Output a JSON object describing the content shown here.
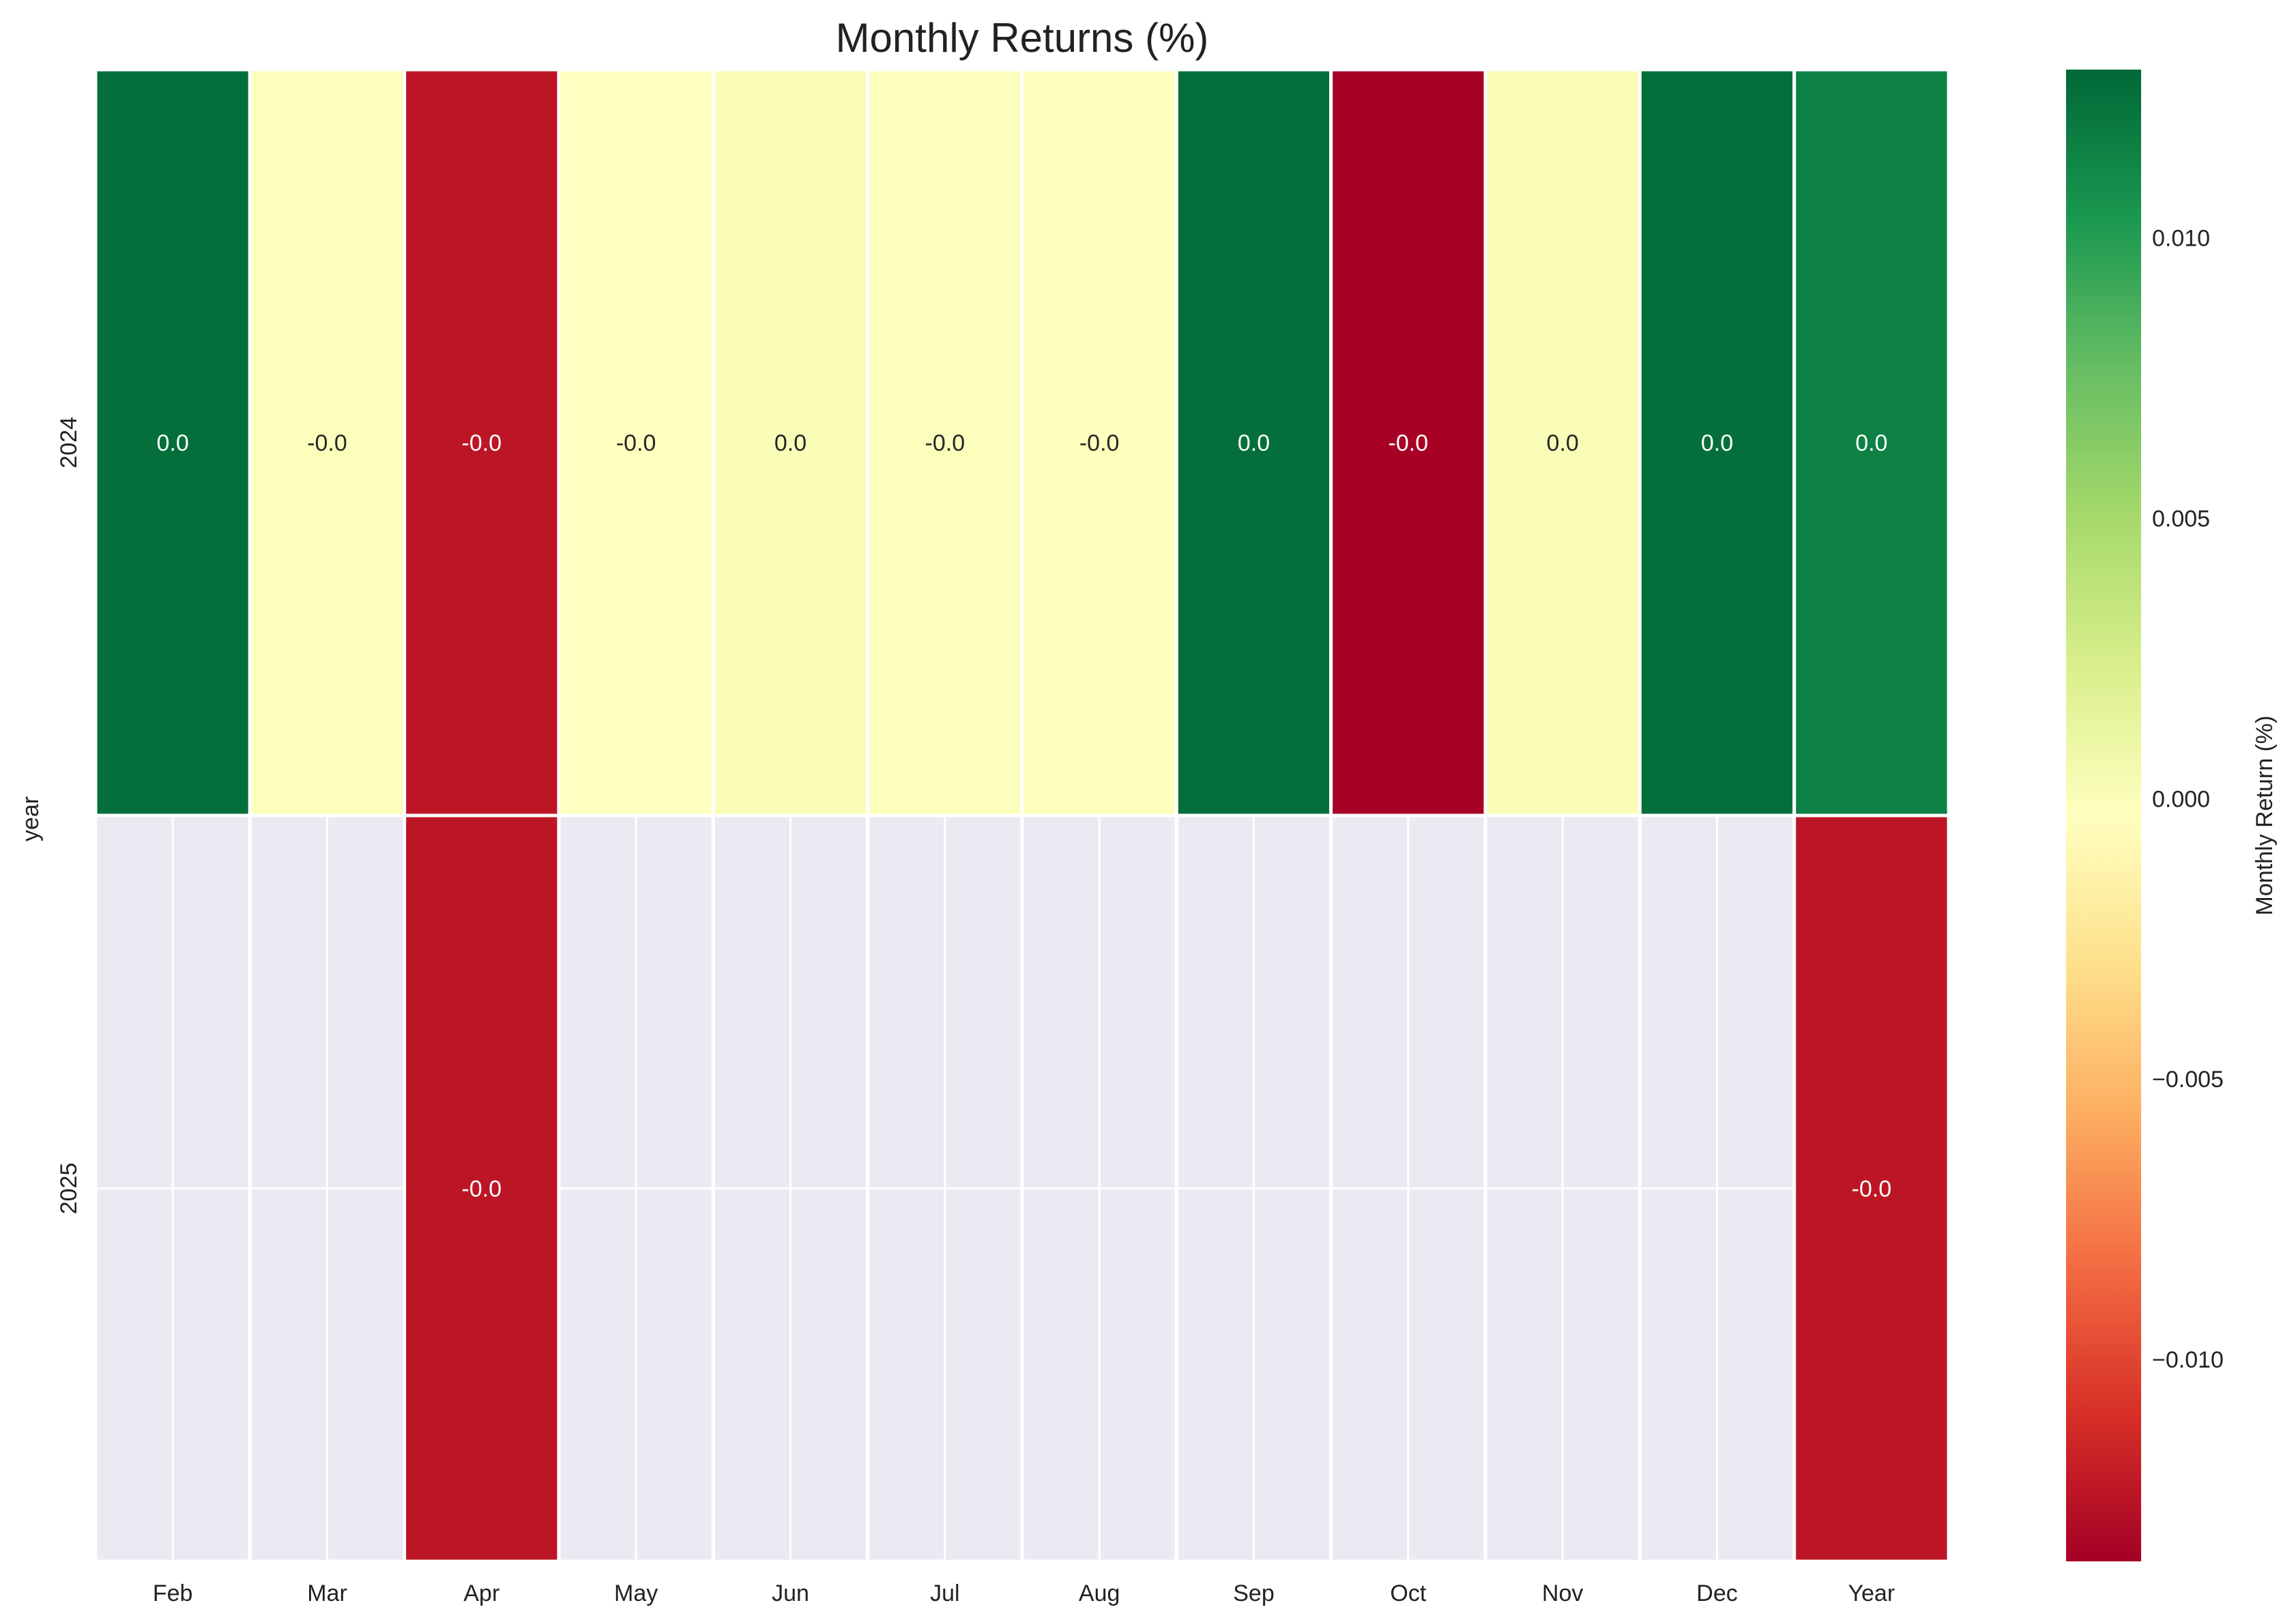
{
  "chart_data": {
    "type": "heatmap",
    "title": "Monthly Returns (%)",
    "ylabel": "year",
    "xlabel": "",
    "columns": [
      "Feb",
      "Mar",
      "Apr",
      "May",
      "Jun",
      "Jul",
      "Aug",
      "Sep",
      "Oct",
      "Nov",
      "Dec",
      "Year"
    ],
    "rows": [
      "2024",
      "2025"
    ],
    "values": [
      [
        0.0126,
        -0.0001,
        -0.0124,
        -0.0003,
        0.0001,
        -0.0001,
        -0.0002,
        0.0126,
        -0.0135,
        0.0001,
        0.0126,
        0.0116
      ],
      [
        null,
        null,
        -0.0124,
        null,
        null,
        null,
        null,
        null,
        null,
        null,
        null,
        -0.0124
      ]
    ],
    "annotations": [
      [
        "0.0",
        "-0.0",
        "-0.0",
        "-0.0",
        "0.0",
        "-0.0",
        "-0.0",
        "0.0",
        "-0.0",
        "0.0",
        "0.0",
        "0.0"
      ],
      [
        null,
        null,
        "-0.0",
        null,
        null,
        null,
        null,
        null,
        null,
        null,
        null,
        "-0.0"
      ]
    ],
    "colorbar": {
      "label": "Monthly Return (%)",
      "range": [
        -0.0136,
        0.013
      ],
      "ticks": [
        0.01,
        0.005,
        0.0,
        -0.005,
        -0.01
      ],
      "tick_labels": [
        "0.010",
        "0.005",
        "0.000",
        "−0.005",
        "−0.010"
      ],
      "colormap": "RdYlGn",
      "stops": [
        "#a50026",
        "#d73027",
        "#f46d43",
        "#fdae61",
        "#fee08b",
        "#ffffbf",
        "#d9ef8b",
        "#a6d96a",
        "#66bd63",
        "#1a9850",
        "#006837"
      ]
    },
    "missing_color": "#eaeaf2",
    "grid": true
  }
}
